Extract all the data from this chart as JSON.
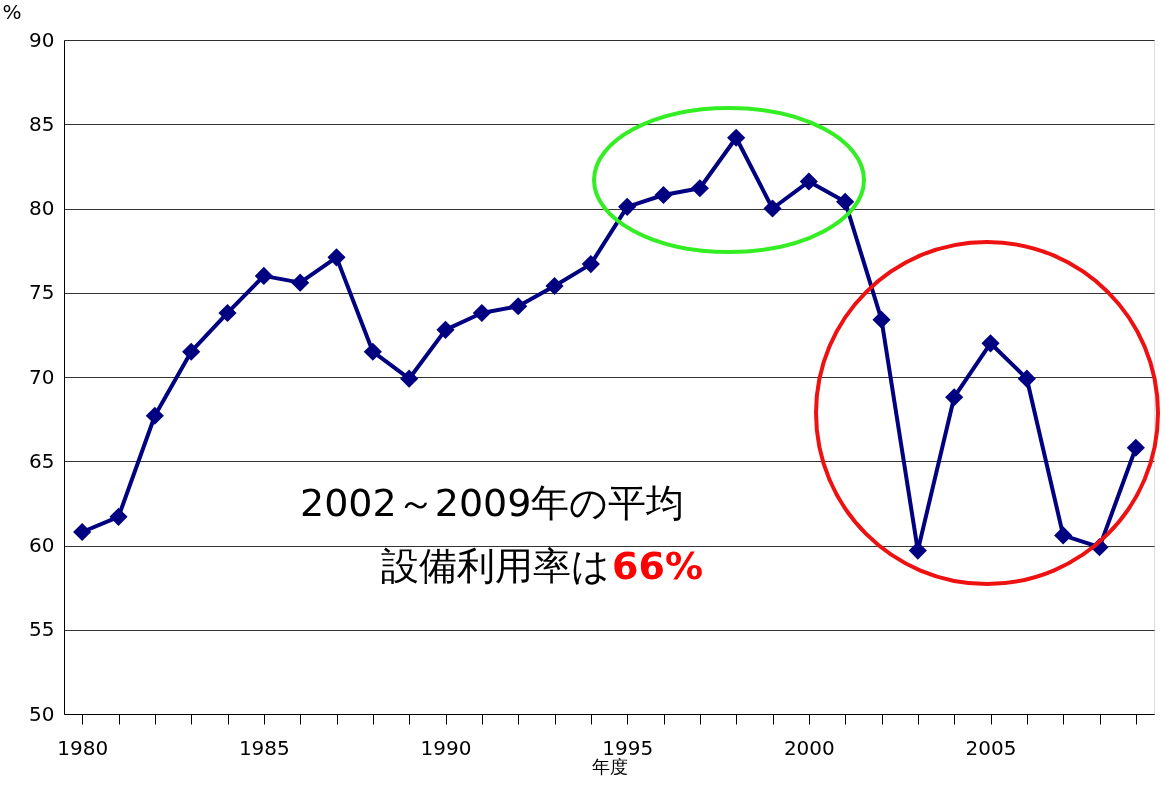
{
  "chart_data": {
    "type": "line",
    "xlabel": "年度",
    "ylabel": "%",
    "x": [
      1980,
      1981,
      1982,
      1983,
      1984,
      1985,
      1986,
      1987,
      1988,
      1989,
      1990,
      1991,
      1992,
      1993,
      1994,
      1995,
      1996,
      1997,
      1998,
      1999,
      2000,
      2001,
      2002,
      2003,
      2004,
      2005,
      2006,
      2007,
      2008,
      2009
    ],
    "series": [
      {
        "color": "#000080",
        "values": [
          60.8,
          61.7,
          67.7,
          71.5,
          73.8,
          76.0,
          75.6,
          77.1,
          71.5,
          69.9,
          72.8,
          73.8,
          74.2,
          75.4,
          76.7,
          80.1,
          80.8,
          81.2,
          84.2,
          80.0,
          81.6,
          80.4,
          73.4,
          59.7,
          68.8,
          72.0,
          69.9,
          60.6,
          59.9,
          65.8
        ]
      }
    ],
    "xlim": [
      1979.5,
      2009.5
    ],
    "xticks": [
      1980,
      {
        "value": 1981,
        "label": null
      },
      {
        "value": 1982,
        "label": null
      },
      {
        "value": 1983,
        "label": null
      },
      {
        "value": 1984,
        "label": null
      },
      1985,
      {
        "value": 1986,
        "label": null
      },
      {
        "value": 1987,
        "label": null
      },
      {
        "value": 1988,
        "label": null
      },
      {
        "value": 1989,
        "label": null
      },
      1990,
      {
        "value": 1991,
        "label": null
      },
      {
        "value": 1992,
        "label": null
      },
      {
        "value": 1993,
        "label": null
      },
      {
        "value": 1994,
        "label": null
      },
      1995,
      {
        "value": 1996,
        "label": null
      },
      {
        "value": 1997,
        "label": null
      },
      {
        "value": 1998,
        "label": null
      },
      {
        "value": 1999,
        "label": null
      },
      2000,
      {
        "value": 2001,
        "label": null
      },
      {
        "value": 2002,
        "label": null
      },
      {
        "value": 2003,
        "label": null
      },
      {
        "value": 2004,
        "label": null
      },
      2005,
      {
        "value": 2006,
        "label": null
      },
      {
        "value": 2007,
        "label": null
      },
      {
        "value": 2008,
        "label": null
      },
      {
        "value": 2009,
        "label": null
      }
    ],
    "ylim": [
      50,
      90
    ],
    "yticks": [
      50,
      55,
      60,
      65,
      70,
      75,
      80,
      85,
      90
    ],
    "grid": "y",
    "marker": "diamond",
    "line_style": "solid",
    "annotations": [
      "2002～2009年の平均",
      "設備利用率は",
      "66%"
    ]
  }
}
